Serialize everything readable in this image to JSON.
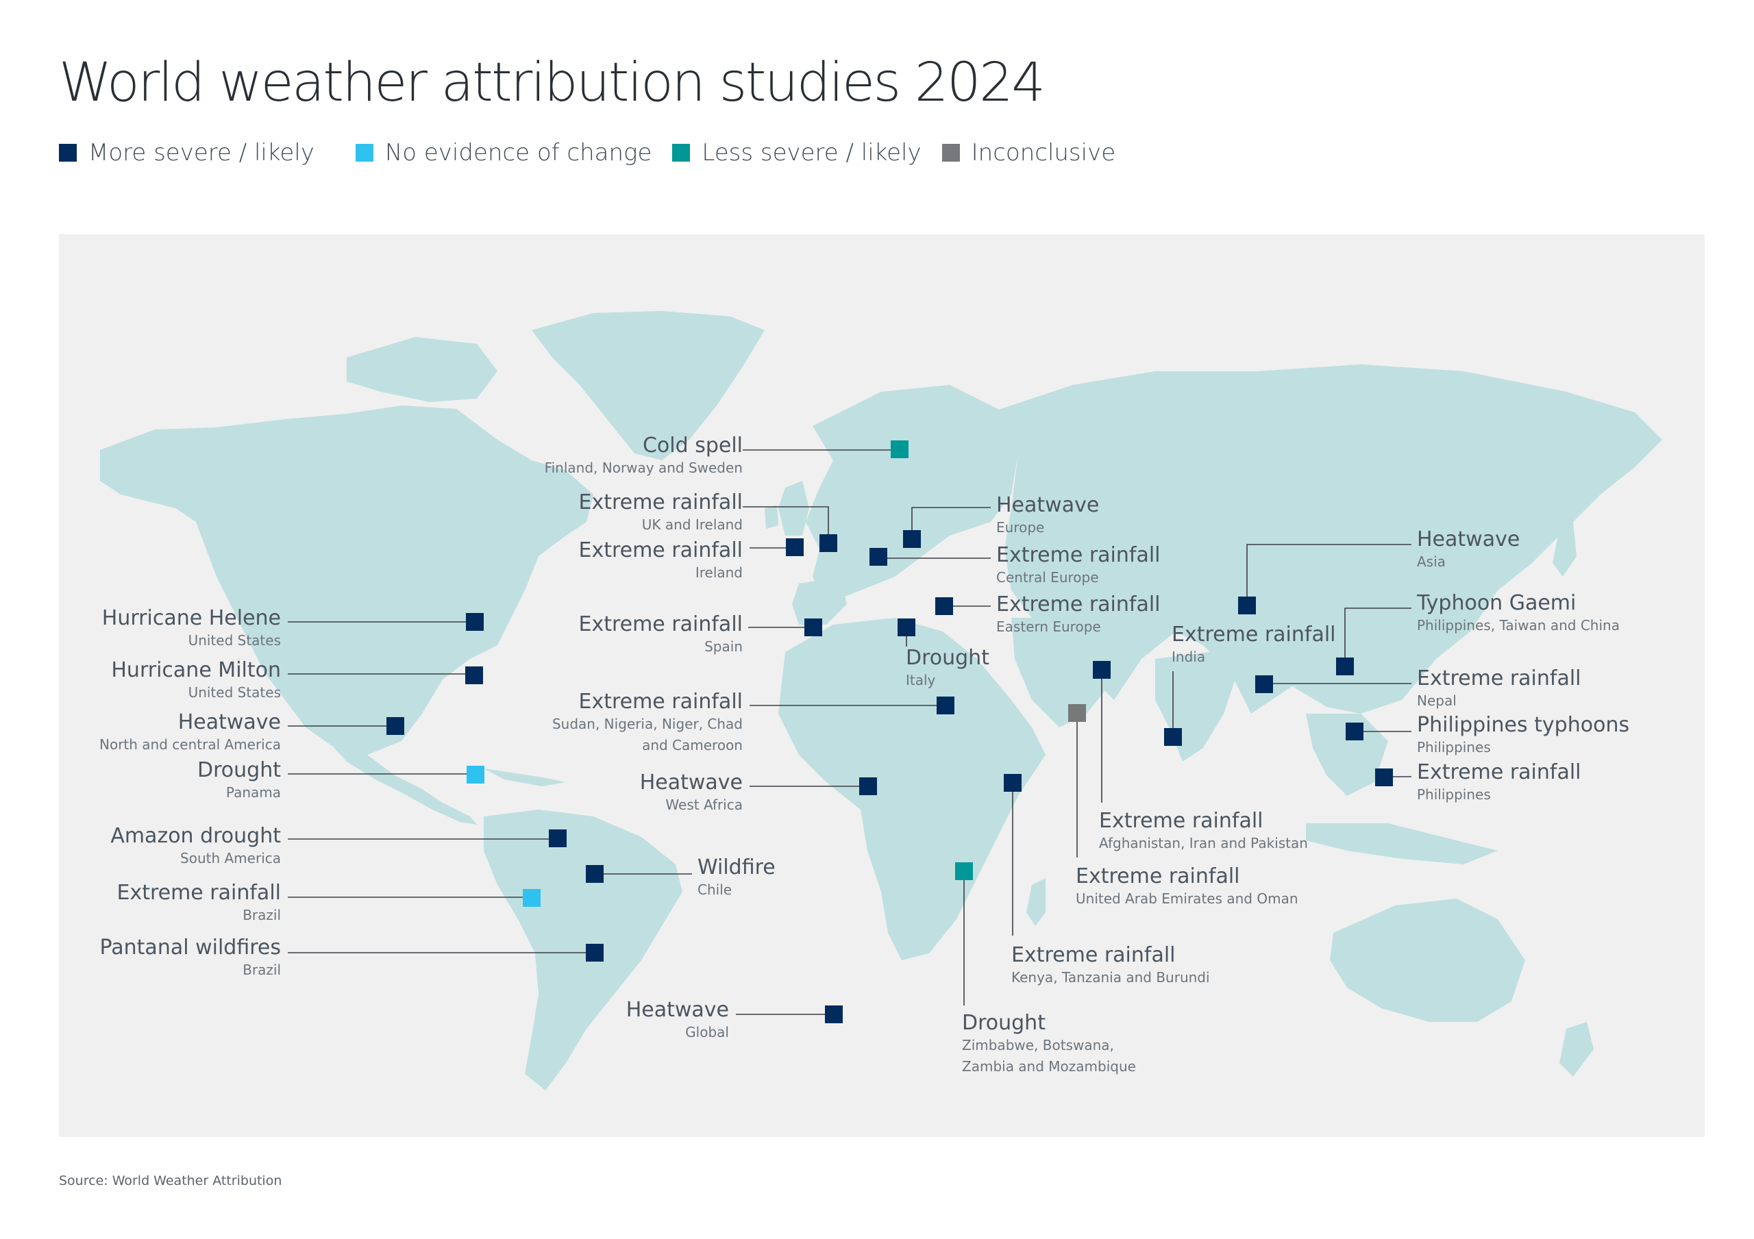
{
  "title": "World weather attribution studies 2024",
  "legend": [
    {
      "key": "more",
      "label": "More severe / likely",
      "color": "#012b5c"
    },
    {
      "key": "none",
      "label": "No evidence of change",
      "color": "#2fc2ef"
    },
    {
      "key": "less",
      "label": "Less severe / likely",
      "color": "#009896"
    },
    {
      "key": "inconclusive",
      "label": "Inconclusive",
      "color": "#77787a"
    }
  ],
  "source": "Source: World Weather Attribution",
  "events": [
    {
      "title": "Cold spell",
      "region": [
        "Finland, Norway and Sweden"
      ],
      "status": "less"
    },
    {
      "title": "Extreme rainfall",
      "region": [
        "UK and Ireland"
      ],
      "status": "more"
    },
    {
      "title": "Extreme rainfall",
      "region": [
        "Ireland"
      ],
      "status": "more"
    },
    {
      "title": "Heatwave",
      "region": [
        "Europe"
      ],
      "status": "more"
    },
    {
      "title": "Extreme rainfall",
      "region": [
        "Central Europe"
      ],
      "status": "more"
    },
    {
      "title": "Extreme rainfall",
      "region": [
        "Eastern Europe"
      ],
      "status": "more"
    },
    {
      "title": "Extreme rainfall",
      "region": [
        "Spain"
      ],
      "status": "more"
    },
    {
      "title": "Drought",
      "region": [
        "Italy"
      ],
      "status": "more"
    },
    {
      "title": "Extreme rainfall",
      "region": [
        "Sudan, Nigeria, Niger, Chad",
        "and Cameroon"
      ],
      "status": "more"
    },
    {
      "title": "Heatwave",
      "region": [
        "West Africa"
      ],
      "status": "more"
    },
    {
      "title": "Hurricane Helene",
      "region": [
        "United States"
      ],
      "status": "more"
    },
    {
      "title": "Hurricane Milton",
      "region": [
        "United States"
      ],
      "status": "more"
    },
    {
      "title": "Heatwave",
      "region": [
        "North and central America"
      ],
      "status": "more"
    },
    {
      "title": "Drought",
      "region": [
        "Panama"
      ],
      "status": "none"
    },
    {
      "title": "Amazon drought",
      "region": [
        "South America"
      ],
      "status": "more"
    },
    {
      "title": "Wildfire",
      "region": [
        "Chile"
      ],
      "status": "more"
    },
    {
      "title": "Extreme rainfall",
      "region": [
        "Brazil"
      ],
      "status": "none"
    },
    {
      "title": "Pantanal wildfires",
      "region": [
        "Brazil"
      ],
      "status": "more"
    },
    {
      "title": "Heatwave",
      "region": [
        "Global"
      ],
      "status": "more"
    },
    {
      "title": "Drought",
      "region": [
        "Zimbabwe, Botswana,",
        "Zambia and Mozambique"
      ],
      "status": "less"
    },
    {
      "title": "Extreme rainfall",
      "region": [
        "Kenya, Tanzania and Burundi"
      ],
      "status": "more"
    },
    {
      "title": "Extreme rainfall",
      "region": [
        "United Arab Emirates and Oman"
      ],
      "status": "inconclusive"
    },
    {
      "title": "Extreme rainfall",
      "region": [
        "Afghanistan, Iran and Pakistan"
      ],
      "status": "more"
    },
    {
      "title": "Extreme rainfall",
      "region": [
        "India"
      ],
      "status": "more"
    },
    {
      "title": "Heatwave",
      "region": [
        "Asia"
      ],
      "status": "more"
    },
    {
      "title": "Typhoon Gaemi",
      "region": [
        "Philippines, Taiwan and China"
      ],
      "status": "more"
    },
    {
      "title": "Extreme rainfall",
      "region": [
        "Nepal"
      ],
      "status": "more"
    },
    {
      "title": "Philippines typhoons",
      "region": [
        "Philippines"
      ],
      "status": "more"
    },
    {
      "title": "Extreme rainfall",
      "region": [
        "Philippines"
      ],
      "status": "more"
    }
  ]
}
